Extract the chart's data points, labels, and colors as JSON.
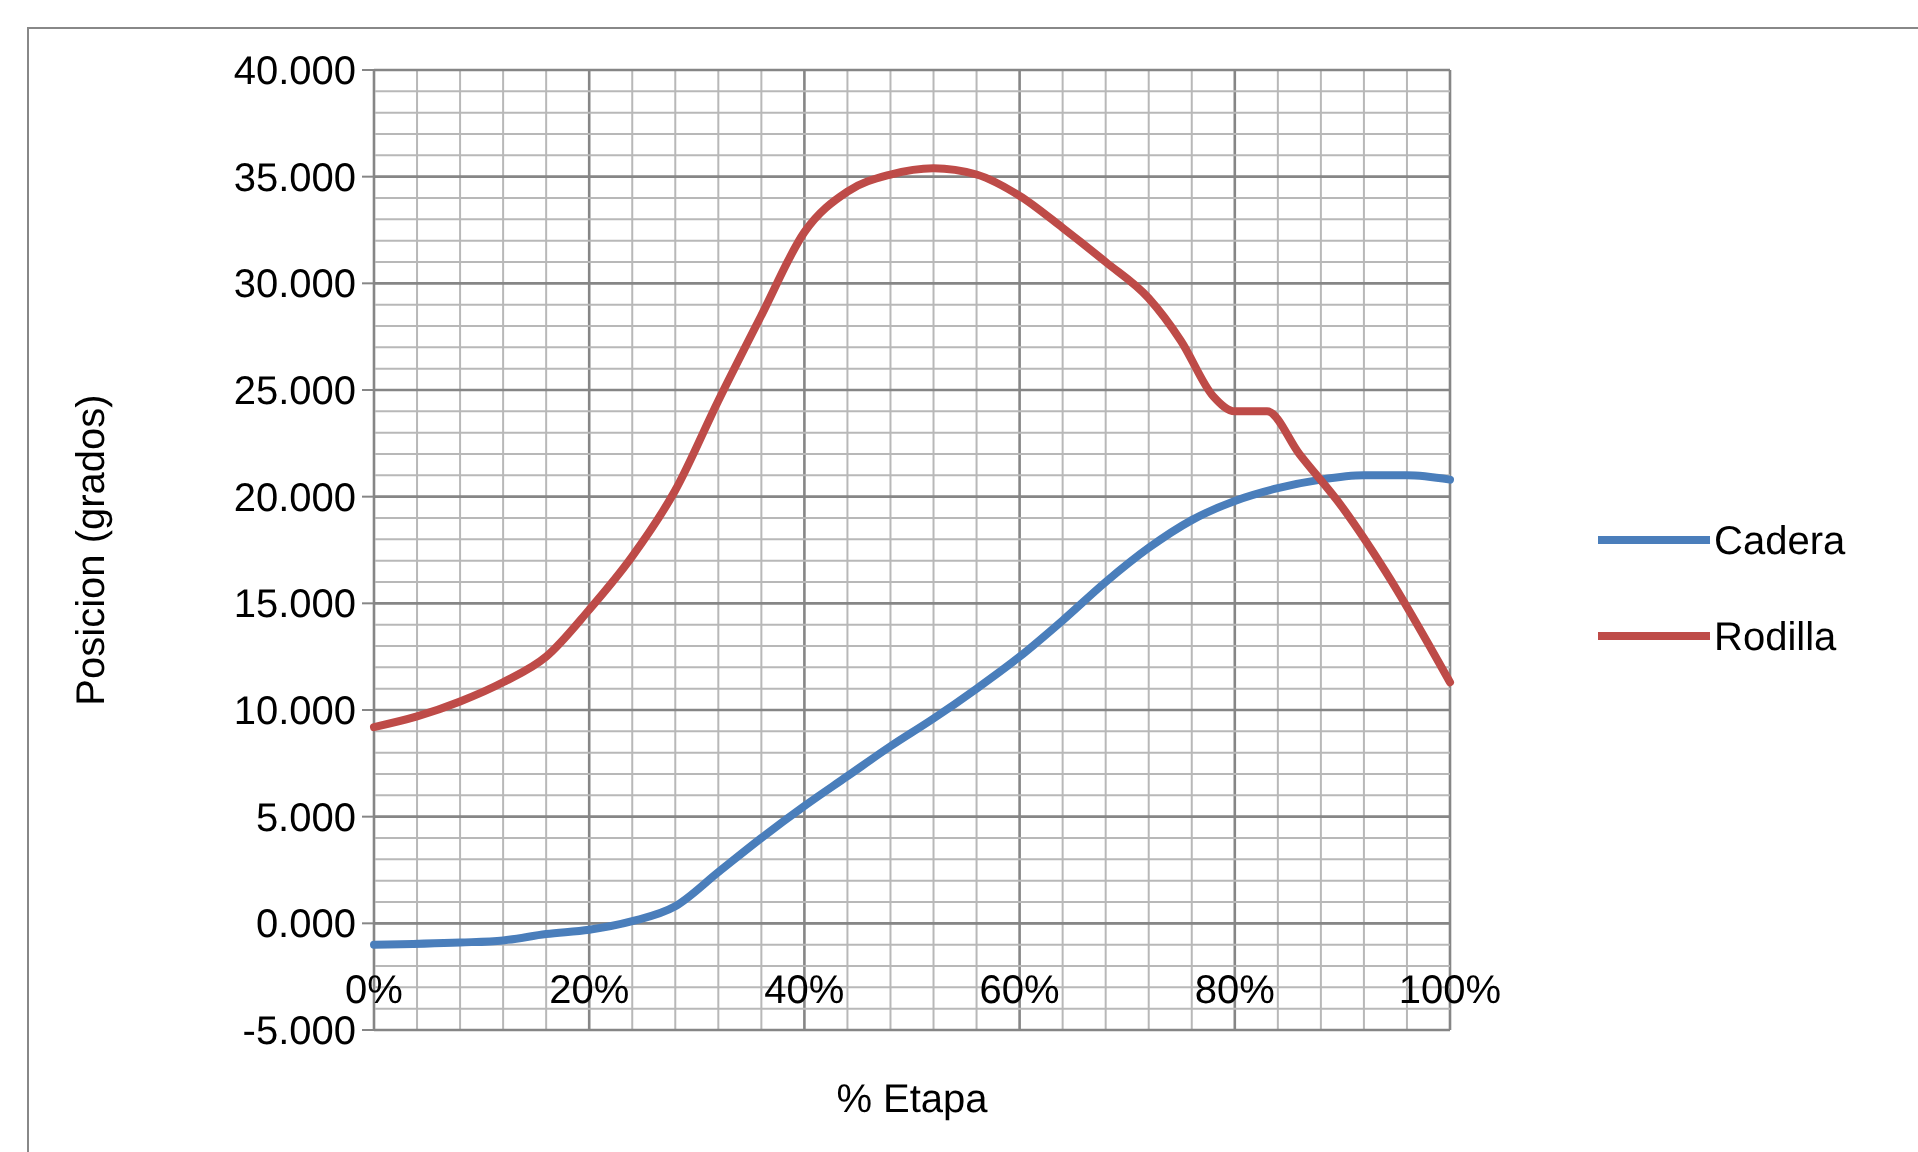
{
  "chart_data": {
    "type": "line",
    "xlabel": "% Etapa",
    "ylabel": "Posicion (grados)",
    "xlim": [
      0,
      100
    ],
    "ylim": [
      -5,
      40
    ],
    "xticks": [
      {
        "value": 0,
        "label": "0%"
      },
      {
        "value": 4,
        "label": null
      },
      {
        "value": 8,
        "label": null
      },
      {
        "value": 12,
        "label": null
      },
      {
        "value": 16,
        "label": null
      },
      {
        "value": 20,
        "label": "20%"
      },
      {
        "value": 24,
        "label": null
      },
      {
        "value": 28,
        "label": null
      },
      {
        "value": 32,
        "label": null
      },
      {
        "value": 36,
        "label": null
      },
      {
        "value": 40,
        "label": "40%"
      },
      {
        "value": 44,
        "label": null
      },
      {
        "value": 48,
        "label": null
      },
      {
        "value": 52,
        "label": null
      },
      {
        "value": 56,
        "label": null
      },
      {
        "value": 60,
        "label": "60%"
      },
      {
        "value": 64,
        "label": null
      },
      {
        "value": 68,
        "label": null
      },
      {
        "value": 72,
        "label": null
      },
      {
        "value": 76,
        "label": null
      },
      {
        "value": 80,
        "label": "80%"
      },
      {
        "value": 84,
        "label": null
      },
      {
        "value": 88,
        "label": null
      },
      {
        "value": 92,
        "label": null
      },
      {
        "value": 96,
        "label": null
      },
      {
        "value": 100,
        "label": "100%"
      }
    ],
    "yticks": [
      {
        "value": -5,
        "label": "-5.000"
      },
      {
        "value": -4,
        "label": null
      },
      {
        "value": -3,
        "label": null
      },
      {
        "value": -2,
        "label": null
      },
      {
        "value": -1,
        "label": null
      },
      {
        "value": 0,
        "label": "0.000"
      },
      {
        "value": 1,
        "label": null
      },
      {
        "value": 2,
        "label": null
      },
      {
        "value": 3,
        "label": null
      },
      {
        "value": 4,
        "label": null
      },
      {
        "value": 5,
        "label": "5.000"
      },
      {
        "value": 6,
        "label": null
      },
      {
        "value": 7,
        "label": null
      },
      {
        "value": 8,
        "label": null
      },
      {
        "value": 9,
        "label": null
      },
      {
        "value": 10,
        "label": "10.000"
      },
      {
        "value": 11,
        "label": null
      },
      {
        "value": 12,
        "label": null
      },
      {
        "value": 13,
        "label": null
      },
      {
        "value": 14,
        "label": null
      },
      {
        "value": 15,
        "label": "15.000"
      },
      {
        "value": 16,
        "label": null
      },
      {
        "value": 17,
        "label": null
      },
      {
        "value": 18,
        "label": null
      },
      {
        "value": 19,
        "label": null
      },
      {
        "value": 20,
        "label": "20.000"
      },
      {
        "value": 21,
        "label": null
      },
      {
        "value": 22,
        "label": null
      },
      {
        "value": 23,
        "label": null
      },
      {
        "value": 24,
        "label": null
      },
      {
        "value": 25,
        "label": "25.000"
      },
      {
        "value": 26,
        "label": null
      },
      {
        "value": 27,
        "label": null
      },
      {
        "value": 28,
        "label": null
      },
      {
        "value": 29,
        "label": null
      },
      {
        "value": 30,
        "label": "30.000"
      },
      {
        "value": 31,
        "label": null
      },
      {
        "value": 32,
        "label": null
      },
      {
        "value": 33,
        "label": null
      },
      {
        "value": 34,
        "label": null
      },
      {
        "value": 35,
        "label": "35.000"
      },
      {
        "value": 36,
        "label": null
      },
      {
        "value": 37,
        "label": null
      },
      {
        "value": 38,
        "label": null
      },
      {
        "value": 39,
        "label": null
      },
      {
        "value": 40,
        "label": "40.000"
      }
    ],
    "grid": true,
    "legend": "right",
    "marker": "none",
    "line_style": "solid",
    "series": [
      {
        "name": "Cadera",
        "color": "#4a7ebb",
        "x": [
          0,
          8,
          12,
          16,
          20,
          24,
          28,
          32,
          36,
          40,
          44,
          48,
          52,
          56,
          60,
          64,
          68,
          72,
          76,
          80,
          84,
          88,
          92,
          96,
          100
        ],
        "values": [
          -1.0,
          -0.9,
          -0.8,
          -0.5,
          -0.3,
          0.1,
          0.8,
          2.4,
          4.0,
          5.5,
          6.9,
          8.3,
          9.6,
          11.0,
          12.5,
          14.2,
          16.0,
          17.6,
          18.9,
          19.8,
          20.4,
          20.8,
          21.0,
          21.0,
          20.8
        ]
      },
      {
        "name": "Rodilla",
        "color": "#be4b48",
        "x": [
          0,
          4,
          8,
          12,
          16,
          20,
          24,
          28,
          32,
          36,
          40,
          44,
          48,
          52,
          56,
          60,
          64,
          68,
          72,
          75,
          78,
          80,
          83,
          86,
          90,
          94,
          100
        ],
        "values": [
          9.2,
          9.7,
          10.4,
          11.3,
          12.5,
          14.7,
          17.2,
          20.3,
          24.5,
          28.5,
          32.4,
          34.3,
          35.1,
          35.4,
          35.1,
          34.1,
          32.6,
          31.0,
          29.3,
          27.3,
          24.7,
          24.0,
          24.0,
          22.0,
          19.5,
          16.5,
          11.3
        ]
      }
    ]
  }
}
